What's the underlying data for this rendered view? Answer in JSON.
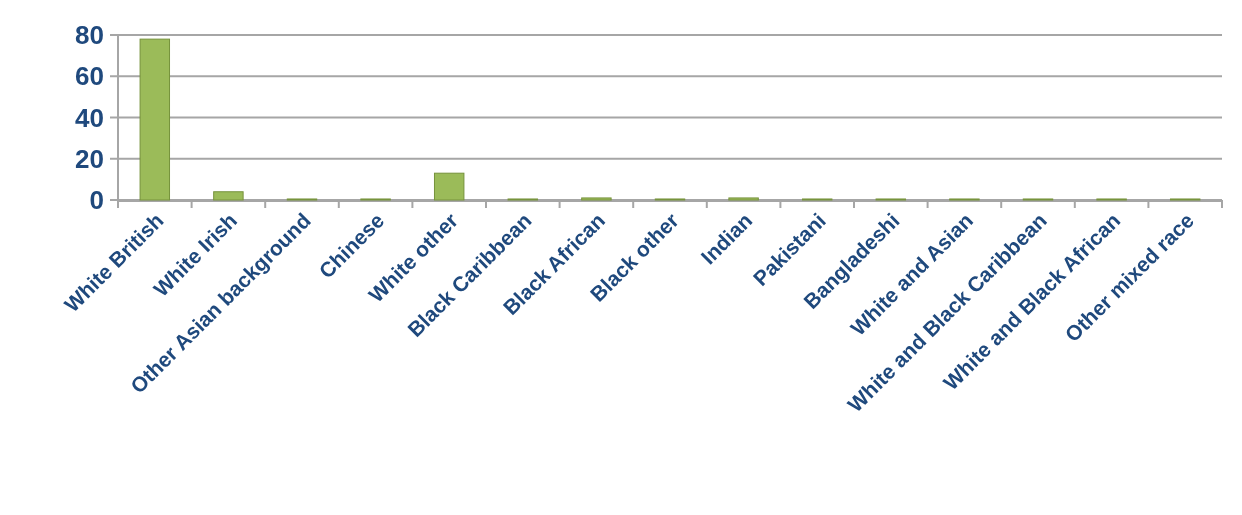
{
  "chart_data": {
    "type": "bar",
    "categories": [
      "White British",
      "White Irish",
      "Other Asian background",
      "Chinese",
      "White other",
      "Black Caribbean",
      "Black African",
      "Black other",
      "Indian",
      "Pakistani",
      "Bangladeshi",
      "White and Asian",
      "White and Black Caribbean",
      "White and Black African",
      "Other mixed race"
    ],
    "values": [
      78,
      4,
      0.5,
      0.5,
      13,
      0.5,
      1,
      0.5,
      1,
      0.5,
      0.5,
      0.5,
      0.5,
      0.5,
      0.5
    ],
    "color": "#9bbb59",
    "ylim": [
      0,
      80
    ],
    "yticks": [
      0,
      20,
      40,
      60,
      80
    ],
    "grid": "y"
  }
}
